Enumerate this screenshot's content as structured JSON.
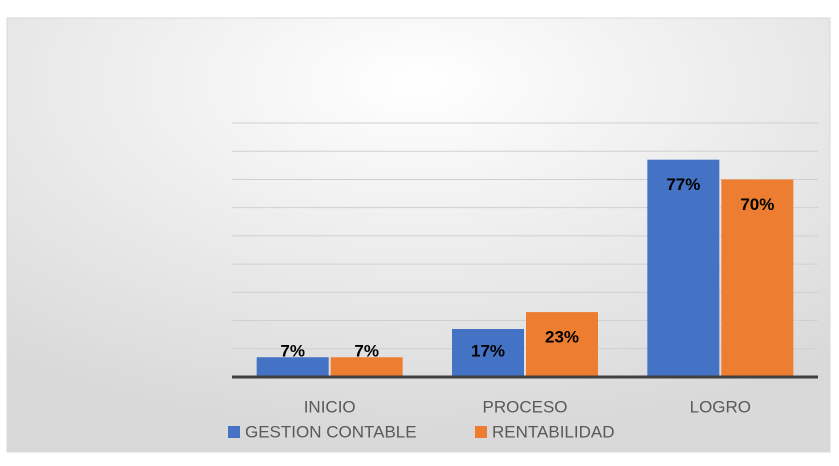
{
  "chart_data": {
    "type": "bar",
    "categories": [
      "INICIO",
      "PROCESO",
      "LOGRO"
    ],
    "series": [
      {
        "name": "GESTION CONTABLE",
        "color": "#4472c4",
        "values": [
          7,
          17,
          77
        ],
        "value_labels": [
          "7%",
          "17%",
          "77%"
        ]
      },
      {
        "name": "RENTABILIDAD",
        "color": "#ed7d31",
        "values": [
          7,
          23,
          70
        ],
        "value_labels": [
          "7%",
          "23%",
          "70%"
        ]
      }
    ],
    "ylim": [
      0,
      90
    ],
    "yticks": [
      0,
      10,
      20,
      30,
      40,
      50,
      60,
      70,
      80,
      90
    ],
    "grid": true,
    "legend": "bottom"
  }
}
